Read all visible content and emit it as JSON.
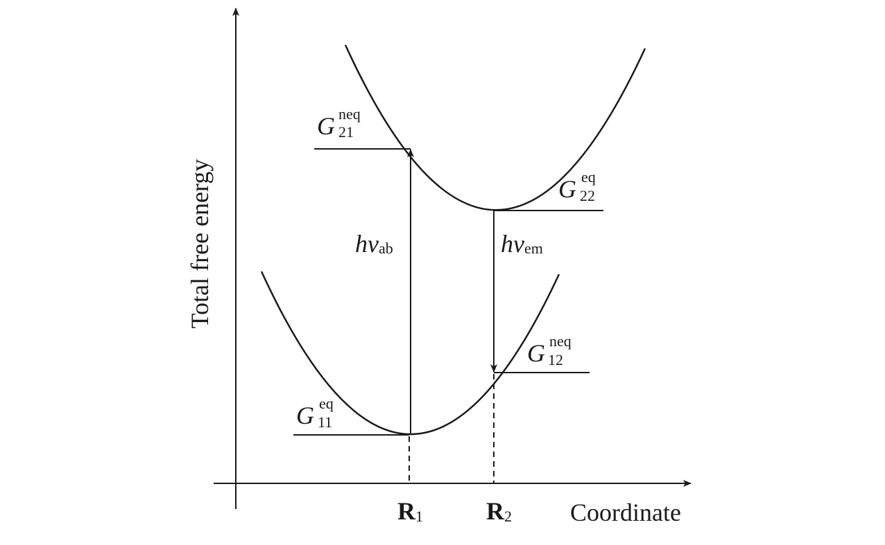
{
  "axes": {
    "y_label": "Total free energy",
    "x_label": "Coordinate"
  },
  "positions": [
    {
      "base": "R",
      "sub": "1"
    },
    {
      "base": "R",
      "sub": "2"
    }
  ],
  "levels": [
    {
      "base": "G",
      "sup": "neq",
      "sub": "21"
    },
    {
      "base": "G",
      "sup": "eq",
      "sub": "22"
    },
    {
      "base": "G",
      "sup": "neq",
      "sub": "12"
    },
    {
      "base": "G",
      "sup": "eq",
      "sub": "11"
    }
  ],
  "transitions": [
    {
      "base": "hv",
      "sub": "ab"
    },
    {
      "base": "hv",
      "sub": "em"
    }
  ]
}
